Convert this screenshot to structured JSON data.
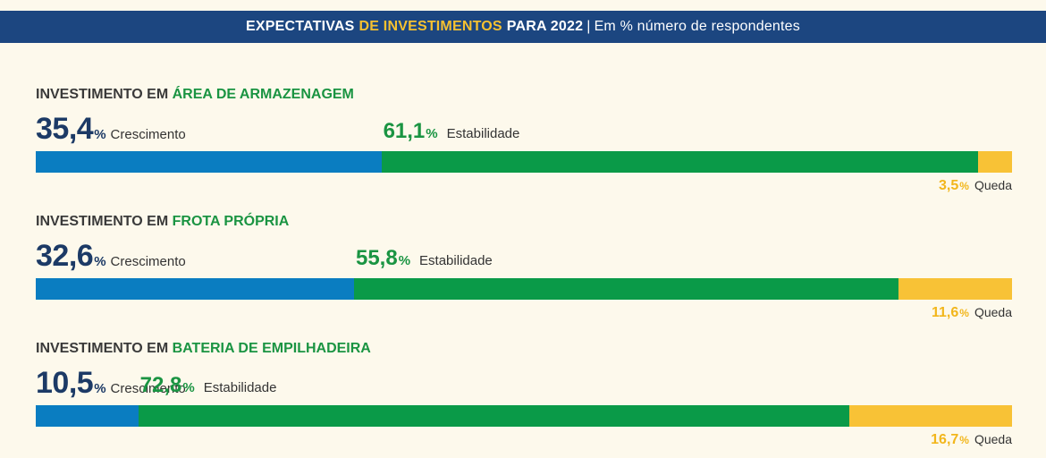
{
  "header": {
    "part1": "EXPECTATIVAS",
    "part2": "DE INVESTIMENTOS",
    "part3": "PARA 2022",
    "separator": "|",
    "subtitle": "Em % número de respondentes"
  },
  "legend": {
    "growth": "Crescimento",
    "stable": "Estabilidade",
    "decline": "Queda",
    "percent_sign": "%"
  },
  "colors": {
    "header_bg": "#1c4680",
    "growth": "#0a7dc1",
    "stable": "#0a9a48",
    "decline": "#f8c236",
    "background": "#fdf9ec"
  },
  "chart_data": {
    "type": "bar",
    "orientation": "horizontal-stacked",
    "title": "EXPECTATIVAS DE INVESTIMENTOS PARA 2022 | Em % número de respondentes",
    "series_names": [
      "Crescimento",
      "Estabilidade",
      "Queda"
    ],
    "categories": [
      {
        "prefix": "INVESTIMENTO EM",
        "highlight": "ÁREA DE ARMAZENAGEM",
        "growth": "35,4",
        "stable": "61,1",
        "decline": "3,5"
      },
      {
        "prefix": "INVESTIMENTO EM",
        "highlight": "FROTA PRÓPRIA",
        "growth": "32,6",
        "stable": "55,8",
        "decline": "11,6"
      },
      {
        "prefix": "INVESTIMENTO EM",
        "highlight": "BATERIA DE EMPILHADEIRA",
        "growth": "10,5",
        "stable": "72,8",
        "decline": "16,7"
      }
    ],
    "values": [
      [
        35.4,
        61.1,
        3.5
      ],
      [
        32.6,
        55.8,
        11.6
      ],
      [
        10.5,
        72.8,
        16.7
      ]
    ],
    "xlim": [
      0,
      100
    ]
  }
}
